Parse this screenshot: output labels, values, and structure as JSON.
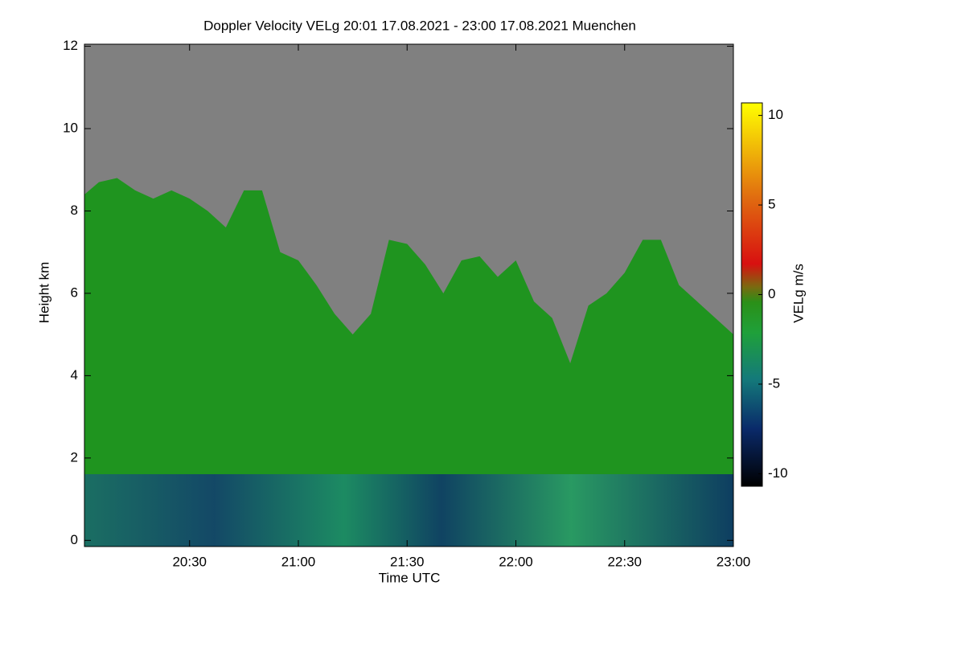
{
  "chart_data": {
    "type": "area",
    "title": "Doppler Velocity VELg   20:01 17.08.2021 - 23:00 17.08.2021 Muenchen",
    "x_label": "Time UTC",
    "y_label": "Height km",
    "colorbar_label": "VELg m/s",
    "x": [
      20.0167,
      20.0833,
      20.1667,
      20.25,
      20.3333,
      20.4167,
      20.5,
      20.5833,
      20.6667,
      20.75,
      20.8333,
      20.9167,
      21.0,
      21.0833,
      21.1667,
      21.25,
      21.3333,
      21.4167,
      21.5,
      21.5833,
      21.6667,
      21.75,
      21.8333,
      21.9167,
      22.0,
      22.0833,
      22.1667,
      22.25,
      22.3333,
      22.4167,
      22.5,
      22.5833,
      22.6667,
      22.75,
      22.8333,
      22.9167,
      23.0
    ],
    "values": [
      8.4,
      8.7,
      8.8,
      8.5,
      8.3,
      8.5,
      8.3,
      8.0,
      7.6,
      8.5,
      8.5,
      7.0,
      6.8,
      6.2,
      5.5,
      5.0,
      5.5,
      7.3,
      7.2,
      6.7,
      6.0,
      6.8,
      6.9,
      6.4,
      6.8,
      5.8,
      5.4,
      4.3,
      5.7,
      6.0,
      6.5,
      7.3,
      7.3,
      6.2,
      5.8,
      5.4,
      5.0
    ],
    "color": "#1f941f",
    "background": "#808080",
    "xlim": [
      20.0167,
      23.0
    ],
    "xticks": [
      {
        "value": 20.5,
        "label": "20:30"
      },
      {
        "value": 21.0,
        "label": "21:00"
      },
      {
        "value": 21.5,
        "label": "21:30"
      },
      {
        "value": 22.0,
        "label": "22:00"
      },
      {
        "value": 22.5,
        "label": "22:30"
      },
      {
        "value": 23.0,
        "label": "23:00"
      }
    ],
    "ylim": [
      -0.15,
      12.05
    ],
    "yticks": [
      0,
      2,
      4,
      6,
      8,
      10,
      12
    ],
    "clim": [
      -10.7,
      10.7
    ],
    "cticks": [
      -10,
      -5,
      0,
      5,
      10
    ]
  }
}
